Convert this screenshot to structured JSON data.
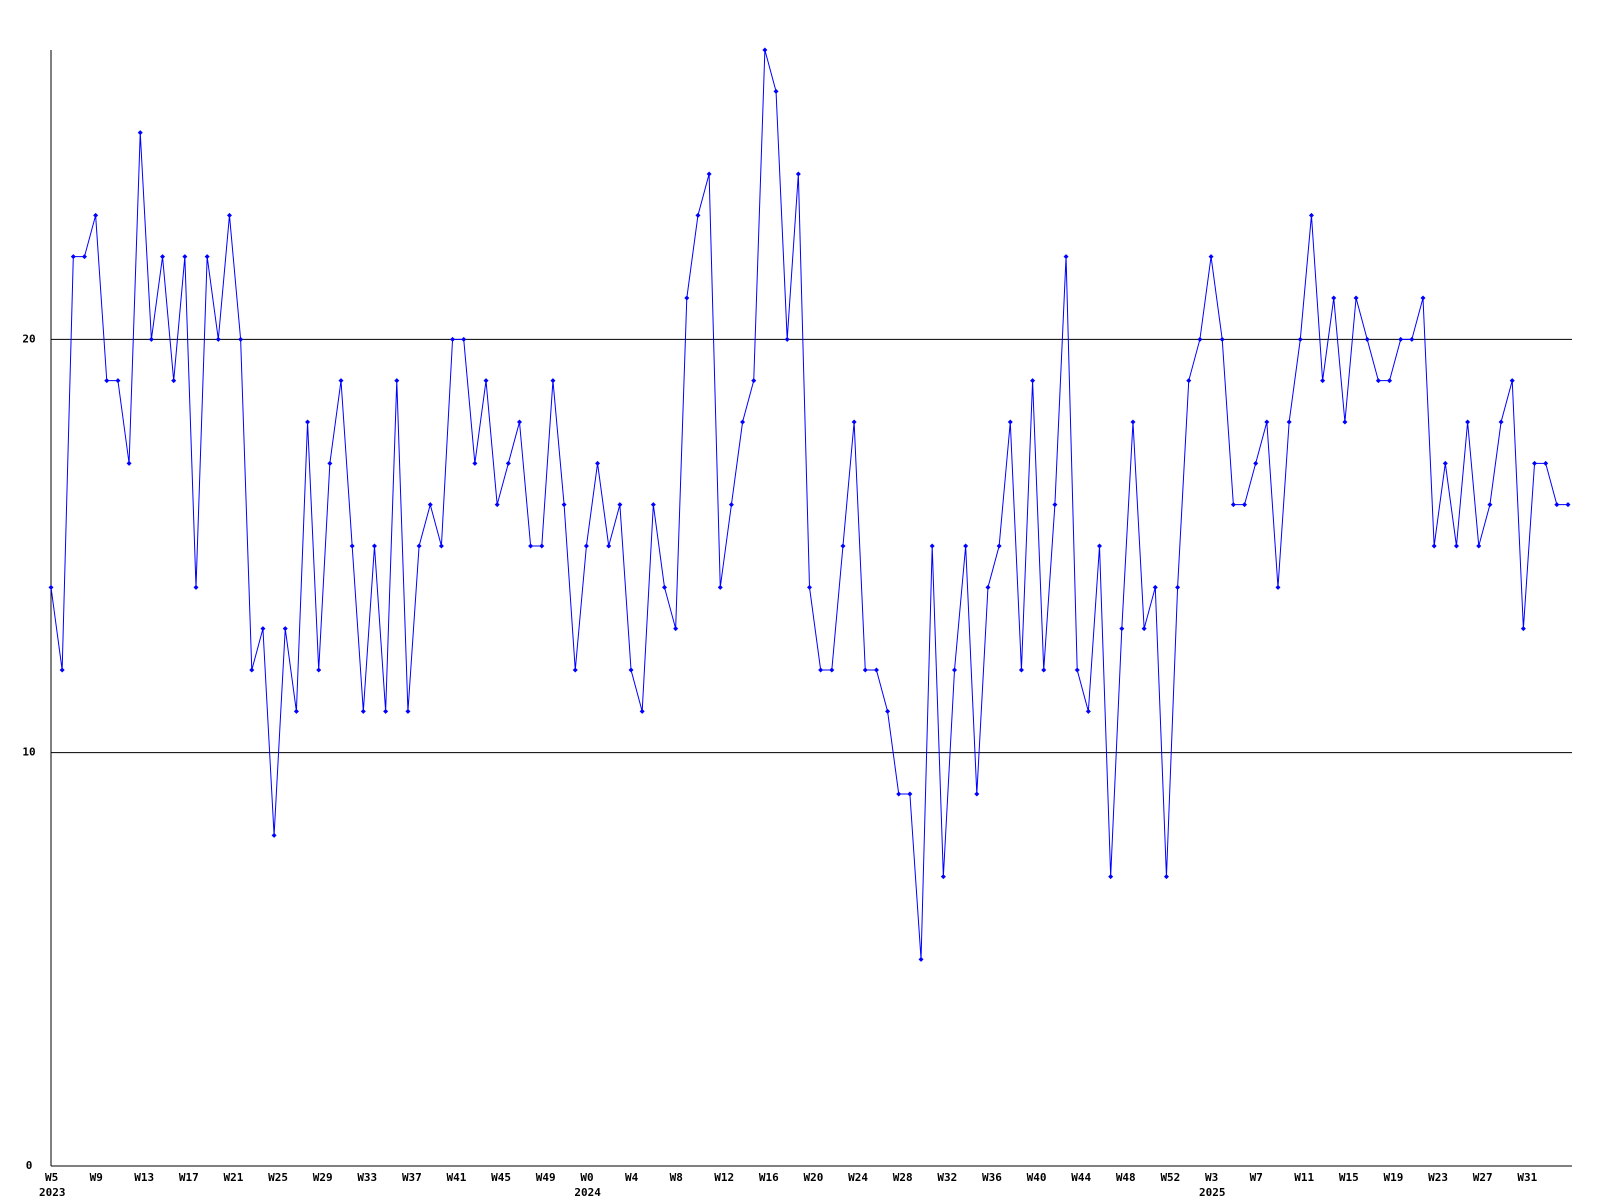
{
  "chart_data": {
    "type": "line",
    "categories": [
      "W5",
      null,
      null,
      null,
      "W9",
      null,
      null,
      null,
      "W13",
      null,
      null,
      null,
      "W17",
      null,
      null,
      null,
      "W21",
      null,
      null,
      null,
      "W25",
      null,
      null,
      null,
      "W29",
      null,
      null,
      null,
      "W33",
      null,
      null,
      null,
      "W37",
      null,
      null,
      null,
      "W41",
      null,
      null,
      null,
      "W45",
      null,
      null,
      null,
      "W49",
      null,
      null,
      null,
      "W0",
      null,
      null,
      null,
      "W4",
      null,
      null,
      null,
      "W8",
      null,
      null,
      null,
      "W12",
      null,
      null,
      null,
      "W16",
      null,
      null,
      null,
      "W20",
      null,
      null,
      null,
      "W24",
      null,
      null,
      null,
      "W28",
      null,
      null,
      null,
      "W32",
      null,
      null,
      null,
      "W36",
      null,
      null,
      null,
      "W40",
      null,
      null,
      null,
      "W44",
      null,
      null,
      null,
      "W48",
      null,
      null,
      null,
      "W52",
      null,
      null,
      null,
      "W3",
      null,
      null,
      null,
      "W7",
      null,
      null,
      null,
      "W11",
      null,
      null,
      null,
      "W15",
      null,
      null,
      null,
      "W19",
      null,
      null,
      null,
      "W23",
      null,
      null,
      null,
      "W27",
      null,
      null,
      null,
      "W31",
      null,
      null,
      null,
      null
    ],
    "year_labels": [
      "2023",
      "2024",
      "2025"
    ],
    "values": [
      14,
      12,
      22,
      22,
      23,
      19,
      19,
      17,
      25,
      20,
      22,
      19,
      22,
      14,
      22,
      20,
      23,
      20,
      12,
      13,
      8,
      13,
      11,
      18,
      12,
      17,
      19,
      15,
      11,
      15,
      11,
      19,
      11,
      15,
      16,
      15,
      20,
      20,
      17,
      19,
      16,
      17,
      18,
      15,
      15,
      19,
      16,
      12,
      15,
      17,
      15,
      16,
      12,
      11,
      16,
      14,
      13,
      21,
      23,
      24,
      14,
      16,
      18,
      19,
      27,
      26,
      20,
      24,
      14,
      12,
      12,
      15,
      18,
      12,
      12,
      11,
      9,
      9,
      5,
      15,
      7,
      12,
      15,
      9,
      14,
      15,
      18,
      12,
      19,
      12,
      16,
      22,
      12,
      11,
      15,
      7,
      13,
      18,
      13,
      14,
      7,
      14,
      19,
      20,
      22,
      20,
      16,
      16,
      17,
      18,
      14,
      18,
      20,
      23,
      19,
      21,
      18,
      21,
      20,
      19,
      19,
      20,
      20,
      21,
      15,
      17,
      15,
      18,
      15,
      16,
      18,
      19,
      13,
      17,
      17,
      16,
      16
    ],
    "color": "#0000ff",
    "ylim": [
      0,
      27
    ],
    "yticks": [
      0,
      10,
      20
    ],
    "grid": true
  }
}
